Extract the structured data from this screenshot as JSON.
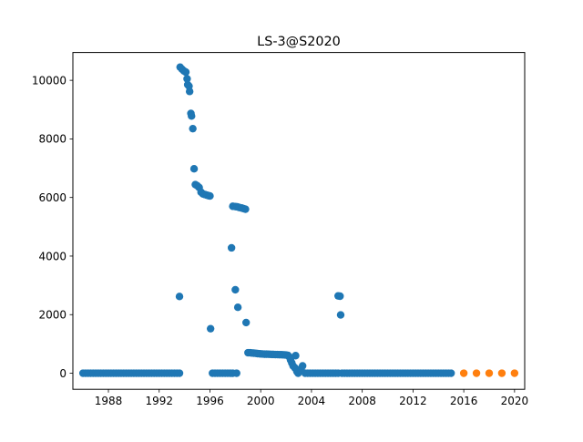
{
  "chart_data": {
    "type": "scatter",
    "title": "LS-3@S2020",
    "xlabel": "",
    "ylabel": "",
    "xlim": [
      1985.2,
      2020.8
    ],
    "ylim": [
      -550,
      10950
    ],
    "x_ticks": [
      1988,
      1992,
      1996,
      2000,
      2004,
      2008,
      2012,
      2016,
      2020
    ],
    "y_ticks": [
      0,
      2000,
      4000,
      6000,
      8000,
      10000
    ],
    "grid": false,
    "legend": "none",
    "series": [
      {
        "color": "#1f77b4",
        "points": [
          [
            1986.0,
            0
          ],
          [
            1986.2,
            0
          ],
          [
            1986.4,
            0
          ],
          [
            1986.6,
            0
          ],
          [
            1986.8,
            0
          ],
          [
            1987.0,
            0
          ],
          [
            1987.2,
            0
          ],
          [
            1987.4,
            0
          ],
          [
            1987.6,
            0
          ],
          [
            1987.8,
            0
          ],
          [
            1988.0,
            0
          ],
          [
            1988.2,
            0
          ],
          [
            1988.4,
            0
          ],
          [
            1988.6,
            0
          ],
          [
            1988.8,
            0
          ],
          [
            1989.0,
            0
          ],
          [
            1989.2,
            0
          ],
          [
            1989.4,
            0
          ],
          [
            1989.6,
            0
          ],
          [
            1989.8,
            0
          ],
          [
            1990.0,
            0
          ],
          [
            1990.2,
            0
          ],
          [
            1990.4,
            0
          ],
          [
            1990.6,
            0
          ],
          [
            1990.8,
            0
          ],
          [
            1991.0,
            0
          ],
          [
            1991.2,
            0
          ],
          [
            1991.4,
            0
          ],
          [
            1991.6,
            0
          ],
          [
            1991.8,
            0
          ],
          [
            1992.0,
            0
          ],
          [
            1992.2,
            0
          ],
          [
            1992.4,
            0
          ],
          [
            1992.6,
            0
          ],
          [
            1992.8,
            0
          ],
          [
            1993.0,
            0
          ],
          [
            1993.2,
            0
          ],
          [
            1993.4,
            0
          ],
          [
            1993.6,
            0
          ],
          [
            1993.6,
            2620
          ],
          [
            1993.65,
            10450
          ],
          [
            1993.8,
            10380
          ],
          [
            1993.95,
            10320
          ],
          [
            1994.1,
            10280
          ],
          [
            1994.2,
            10050
          ],
          [
            1994.25,
            9850
          ],
          [
            1994.35,
            9800
          ],
          [
            1994.4,
            9620
          ],
          [
            1994.5,
            8870
          ],
          [
            1994.55,
            8780
          ],
          [
            1994.65,
            8350
          ],
          [
            1994.75,
            6980
          ],
          [
            1994.85,
            6440
          ],
          [
            1995.0,
            6400
          ],
          [
            1995.15,
            6340
          ],
          [
            1995.3,
            6180
          ],
          [
            1995.45,
            6120
          ],
          [
            1995.6,
            6100
          ],
          [
            1995.75,
            6080
          ],
          [
            1995.9,
            6060
          ],
          [
            1996.0,
            6050
          ],
          [
            1996.05,
            1520
          ],
          [
            1996.2,
            0
          ],
          [
            1996.4,
            0
          ],
          [
            1996.6,
            0
          ],
          [
            1996.8,
            0
          ],
          [
            1997.0,
            0
          ],
          [
            1997.2,
            0
          ],
          [
            1997.4,
            0
          ],
          [
            1997.6,
            0
          ],
          [
            1997.8,
            0
          ],
          [
            1997.7,
            4280
          ],
          [
            1997.8,
            5700
          ],
          [
            1998.0,
            5690
          ],
          [
            1998.15,
            5680
          ],
          [
            1998.3,
            5660
          ],
          [
            1998.5,
            5640
          ],
          [
            1998.65,
            5620
          ],
          [
            1998.8,
            5600
          ],
          [
            1998.0,
            2850
          ],
          [
            1998.2,
            2250
          ],
          [
            1998.1,
            0
          ],
          [
            1998.85,
            1730
          ],
          [
            1999.0,
            700
          ],
          [
            1999.15,
            700
          ],
          [
            1999.3,
            690
          ],
          [
            1999.45,
            685
          ],
          [
            1999.6,
            680
          ],
          [
            1999.75,
            670
          ],
          [
            1999.9,
            665
          ],
          [
            2000.0,
            660
          ],
          [
            2000.15,
            655
          ],
          [
            2000.3,
            650
          ],
          [
            2000.45,
            650
          ],
          [
            2000.6,
            648
          ],
          [
            2000.75,
            645
          ],
          [
            2000.9,
            642
          ],
          [
            2001.0,
            640
          ],
          [
            2001.15,
            638
          ],
          [
            2001.3,
            636
          ],
          [
            2001.45,
            634
          ],
          [
            2001.6,
            632
          ],
          [
            2001.75,
            630
          ],
          [
            2001.9,
            626
          ],
          [
            2002.0,
            620
          ],
          [
            2002.15,
            610
          ],
          [
            2002.25,
            560
          ],
          [
            2002.35,
            450
          ],
          [
            2002.45,
            350
          ],
          [
            2002.55,
            250
          ],
          [
            2002.7,
            180
          ],
          [
            2002.75,
            600
          ],
          [
            2002.85,
            60
          ],
          [
            2002.95,
            0
          ],
          [
            2003.05,
            120
          ],
          [
            2003.2,
            80
          ],
          [
            2003.3,
            250
          ],
          [
            2003.5,
            0
          ],
          [
            2003.7,
            0
          ],
          [
            2003.9,
            0
          ],
          [
            2004.1,
            0
          ],
          [
            2004.3,
            0
          ],
          [
            2004.5,
            0
          ],
          [
            2004.7,
            0
          ],
          [
            2004.9,
            0
          ],
          [
            2005.1,
            0
          ],
          [
            2005.3,
            0
          ],
          [
            2005.5,
            0
          ],
          [
            2005.7,
            0
          ],
          [
            2005.9,
            0
          ],
          [
            2006.1,
            0
          ],
          [
            2006.1,
            2640
          ],
          [
            2006.25,
            2630
          ],
          [
            2006.3,
            1990
          ],
          [
            2006.4,
            0
          ],
          [
            2006.6,
            0
          ],
          [
            2006.8,
            0
          ],
          [
            2007.0,
            0
          ],
          [
            2007.2,
            0
          ],
          [
            2007.4,
            0
          ],
          [
            2007.6,
            0
          ],
          [
            2007.8,
            0
          ],
          [
            2008.0,
            0
          ],
          [
            2008.2,
            0
          ],
          [
            2008.4,
            0
          ],
          [
            2008.6,
            0
          ],
          [
            2008.8,
            0
          ],
          [
            2009.0,
            0
          ],
          [
            2009.2,
            0
          ],
          [
            2009.4,
            0
          ],
          [
            2009.6,
            0
          ],
          [
            2009.8,
            0
          ],
          [
            2010.0,
            0
          ],
          [
            2010.2,
            0
          ],
          [
            2010.4,
            0
          ],
          [
            2010.6,
            0
          ],
          [
            2010.8,
            0
          ],
          [
            2011.0,
            0
          ],
          [
            2011.2,
            0
          ],
          [
            2011.4,
            0
          ],
          [
            2011.6,
            0
          ],
          [
            2011.8,
            0
          ],
          [
            2012.0,
            0
          ],
          [
            2012.2,
            0
          ],
          [
            2012.4,
            0
          ],
          [
            2012.6,
            0
          ],
          [
            2012.8,
            0
          ],
          [
            2013.0,
            0
          ],
          [
            2013.2,
            0
          ],
          [
            2013.4,
            0
          ],
          [
            2013.6,
            0
          ],
          [
            2013.8,
            0
          ],
          [
            2014.0,
            0
          ],
          [
            2014.2,
            0
          ],
          [
            2014.4,
            0
          ],
          [
            2014.6,
            0
          ],
          [
            2014.8,
            0
          ],
          [
            2015.0,
            0
          ]
        ]
      },
      {
        "color": "#ff7f0e",
        "points": [
          [
            2016,
            0
          ],
          [
            2017,
            0
          ],
          [
            2018,
            0
          ],
          [
            2019,
            0
          ],
          [
            2020,
            0
          ]
        ]
      }
    ]
  }
}
